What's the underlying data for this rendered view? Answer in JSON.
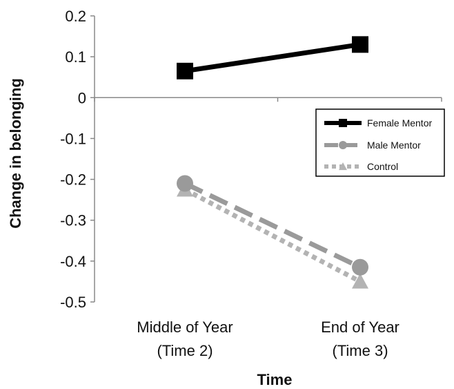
{
  "chart_data": {
    "type": "line",
    "xlabel": "Time",
    "ylabel": "Change in belonging",
    "categories": [
      [
        "Middle of Year",
        "(Time 2)"
      ],
      [
        "End of Year",
        "(Time 3)"
      ]
    ],
    "ylim": [
      -0.5,
      0.2
    ],
    "yticks": [
      0.2,
      0.1,
      0,
      -0.1,
      -0.2,
      -0.3,
      -0.4,
      -0.5
    ],
    "ytick_labels": [
      "0.2",
      "0.1",
      "0",
      "-0.1",
      "-0.2",
      "-0.3",
      "-0.4",
      "-0.5"
    ],
    "grid": false,
    "legend_position": "right",
    "series": [
      {
        "name": "Female Mentor",
        "values": [
          0.065,
          0.13
        ],
        "color": "#000000",
        "marker": "square",
        "dash": "solid"
      },
      {
        "name": "Male Mentor",
        "values": [
          -0.21,
          -0.415
        ],
        "color": "#9a9a9a",
        "marker": "circle",
        "dash": "long-dash"
      },
      {
        "name": "Control",
        "values": [
          -0.225,
          -0.45
        ],
        "color": "#b3b3b3",
        "marker": "triangle",
        "dash": "dotted"
      }
    ]
  }
}
